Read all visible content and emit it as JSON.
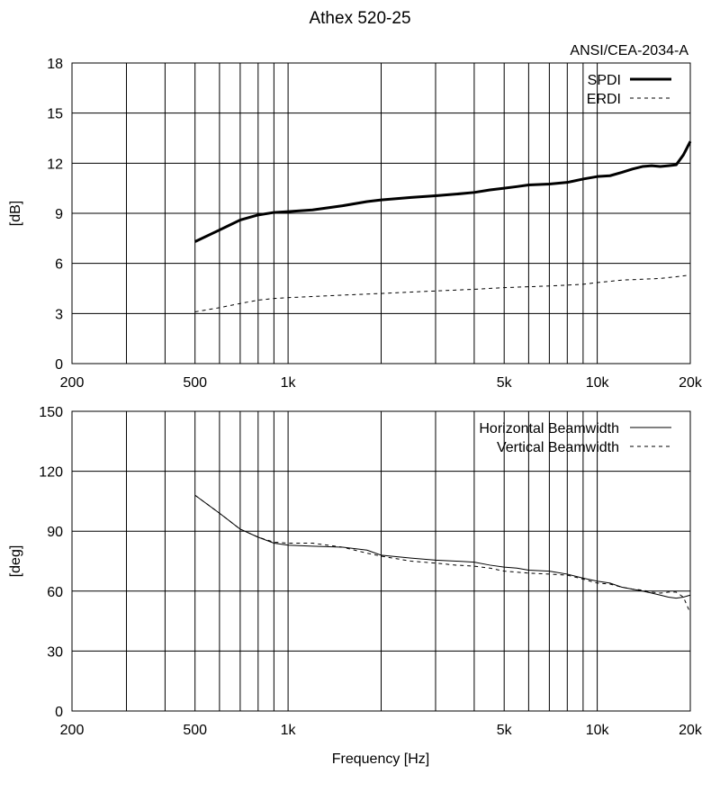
{
  "page_title": "Athex 520-25",
  "x_axis_label": "Frequency [Hz]",
  "chart_data": [
    {
      "type": "line",
      "annotation": "ANSI/CEA-2034-A",
      "ylabel": "[dB]",
      "xscale": "log",
      "xlim": [
        200,
        20000
      ],
      "ylim": [
        0,
        18
      ],
      "xticks": [
        200,
        500,
        1000,
        5000,
        10000,
        20000
      ],
      "xtick_labels": [
        "200",
        "500",
        "1k",
        "5k",
        "10k",
        "20k"
      ],
      "yticks": [
        0,
        3,
        6,
        9,
        12,
        15,
        18
      ],
      "xgrid": [
        300,
        400,
        500,
        600,
        700,
        800,
        900,
        1000,
        2000,
        3000,
        4000,
        5000,
        6000,
        7000,
        8000,
        9000,
        10000,
        20000
      ],
      "grid": true,
      "legend_position": "top-right",
      "series": [
        {
          "name": "SPDI",
          "style": "solid-thick",
          "x": [
            500,
            600,
            700,
            800,
            900,
            1000,
            1200,
            1500,
            1800,
            2000,
            2500,
            3000,
            3500,
            4000,
            4500,
            5000,
            5500,
            6000,
            7000,
            8000,
            9000,
            10000,
            11000,
            12000,
            13000,
            14000,
            15000,
            16000,
            17000,
            18000,
            19000,
            20000
          ],
          "y": [
            7.3,
            8.0,
            8.6,
            8.9,
            9.05,
            9.1,
            9.2,
            9.45,
            9.7,
            9.8,
            9.95,
            10.05,
            10.15,
            10.25,
            10.4,
            10.5,
            10.6,
            10.7,
            10.75,
            10.85,
            11.05,
            11.2,
            11.25,
            11.45,
            11.65,
            11.8,
            11.85,
            11.8,
            11.85,
            11.9,
            12.5,
            13.3
          ]
        },
        {
          "name": "ERDI",
          "style": "dashed",
          "x": [
            500,
            600,
            700,
            800,
            900,
            1000,
            1500,
            2000,
            3000,
            4000,
            5000,
            6000,
            7000,
            8000,
            9000,
            10000,
            12000,
            14000,
            16000,
            18000,
            20000
          ],
          "y": [
            3.1,
            3.35,
            3.6,
            3.8,
            3.9,
            3.95,
            4.1,
            4.2,
            4.35,
            4.45,
            4.55,
            4.6,
            4.65,
            4.7,
            4.75,
            4.85,
            5.0,
            5.05,
            5.1,
            5.2,
            5.3
          ]
        }
      ]
    },
    {
      "type": "line",
      "ylabel": "[deg]",
      "xscale": "log",
      "xlim": [
        200,
        20000
      ],
      "ylim": [
        0,
        150
      ],
      "xticks": [
        200,
        500,
        1000,
        5000,
        10000,
        20000
      ],
      "xtick_labels": [
        "200",
        "500",
        "1k",
        "5k",
        "10k",
        "20k"
      ],
      "yticks": [
        0,
        30,
        60,
        90,
        120,
        150
      ],
      "xgrid": [
        300,
        400,
        500,
        600,
        700,
        800,
        900,
        1000,
        2000,
        3000,
        4000,
        5000,
        6000,
        7000,
        8000,
        9000,
        10000,
        20000
      ],
      "grid": true,
      "legend_position": "top-right",
      "series": [
        {
          "name": "Horizontal Beamwidth",
          "style": "solid-thin",
          "x": [
            500,
            600,
            700,
            800,
            900,
            1000,
            1200,
            1500,
            1800,
            2000,
            2500,
            3000,
            3500,
            4000,
            4500,
            5000,
            5500,
            6000,
            7000,
            8000,
            9000,
            10000,
            11000,
            12000,
            13000,
            14000,
            15000,
            16000,
            17000,
            18000,
            19000,
            20000
          ],
          "y": [
            108,
            99,
            91,
            87,
            84,
            83,
            82.5,
            82,
            80.5,
            78,
            76.5,
            75.5,
            75,
            74.5,
            73,
            72,
            71.5,
            70.5,
            70,
            68.5,
            66.5,
            65,
            64,
            62,
            61,
            60,
            59,
            58,
            57,
            56.5,
            57,
            58
          ]
        },
        {
          "name": "Vertical Beamwidth",
          "style": "dashed",
          "x": [
            500,
            600,
            700,
            800,
            900,
            1000,
            1200,
            1500,
            1800,
            2000,
            2500,
            3000,
            3500,
            4000,
            4500,
            5000,
            5500,
            6000,
            7000,
            8000,
            9000,
            10000,
            11000,
            12000,
            13000,
            14000,
            15000,
            16000,
            17000,
            18000,
            19000,
            20000
          ],
          "y": [
            108,
            99,
            91,
            87,
            84.5,
            84,
            84,
            82,
            79,
            77.5,
            75,
            74,
            73,
            72.5,
            71.5,
            70,
            69.5,
            69,
            68.5,
            68,
            66,
            64,
            63.5,
            62,
            61,
            60.5,
            59.5,
            59,
            59.5,
            59.5,
            57,
            49
          ]
        }
      ]
    }
  ]
}
